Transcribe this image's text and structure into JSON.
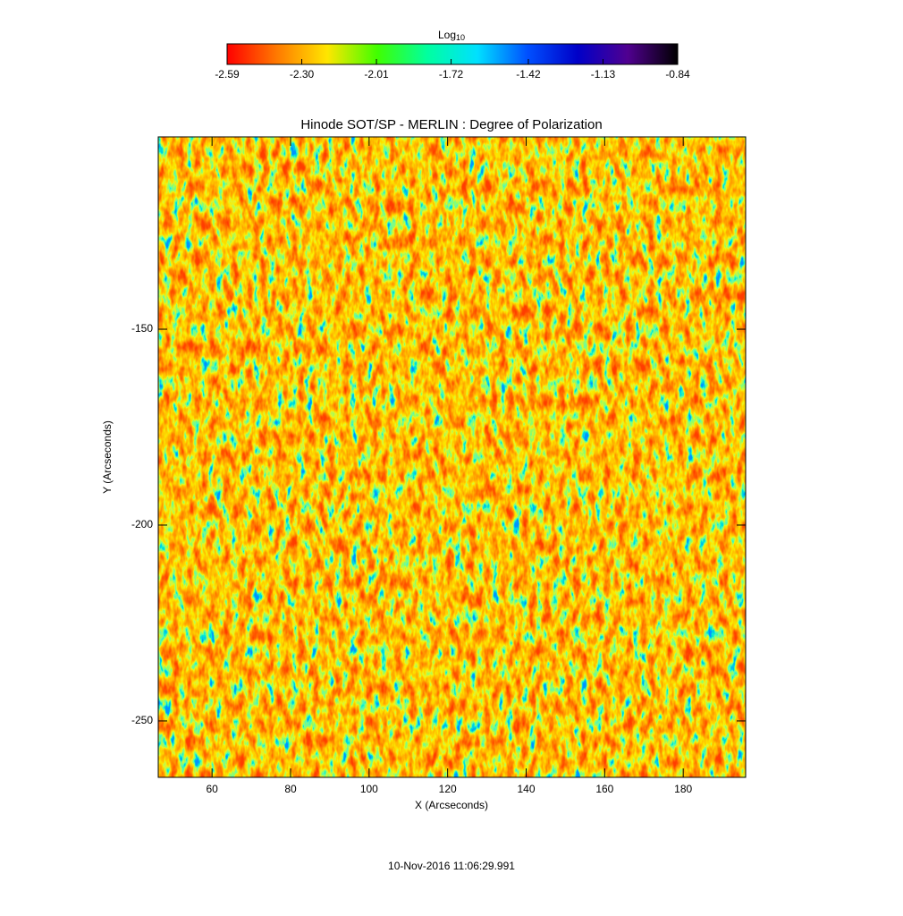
{
  "chart_data": {
    "type": "heatmap",
    "title": "Hinode SOT/SP - MERLIN : Degree of Polarization",
    "xlabel": "X (Arcseconds)",
    "ylabel": "Y (Arcseconds)",
    "xlim": [
      46.3,
      195.9
    ],
    "ylim": [
      -264.4,
      -100.9
    ],
    "xticks": [
      60,
      80,
      100,
      120,
      140,
      160,
      180
    ],
    "yticks": [
      -150,
      -200,
      -250
    ],
    "colorbar": {
      "label": "Log",
      "label_sub": "10",
      "lim": [
        -2.59,
        -0.84
      ],
      "ticks": [
        -2.59,
        {
          "value": -2.3,
          "label": "-2.30"
        },
        -2.01,
        -1.72,
        -1.42,
        -1.13,
        -0.84
      ],
      "colormap": [
        "#ff0000",
        "#ff7a00",
        "#ffe600",
        "#40ff00",
        "#00ffa0",
        "#00e0ff",
        "#0050ff",
        "#0000c8",
        "#500090",
        "#000000"
      ]
    },
    "footer": "10-Nov-2016 11:06:29.991"
  }
}
